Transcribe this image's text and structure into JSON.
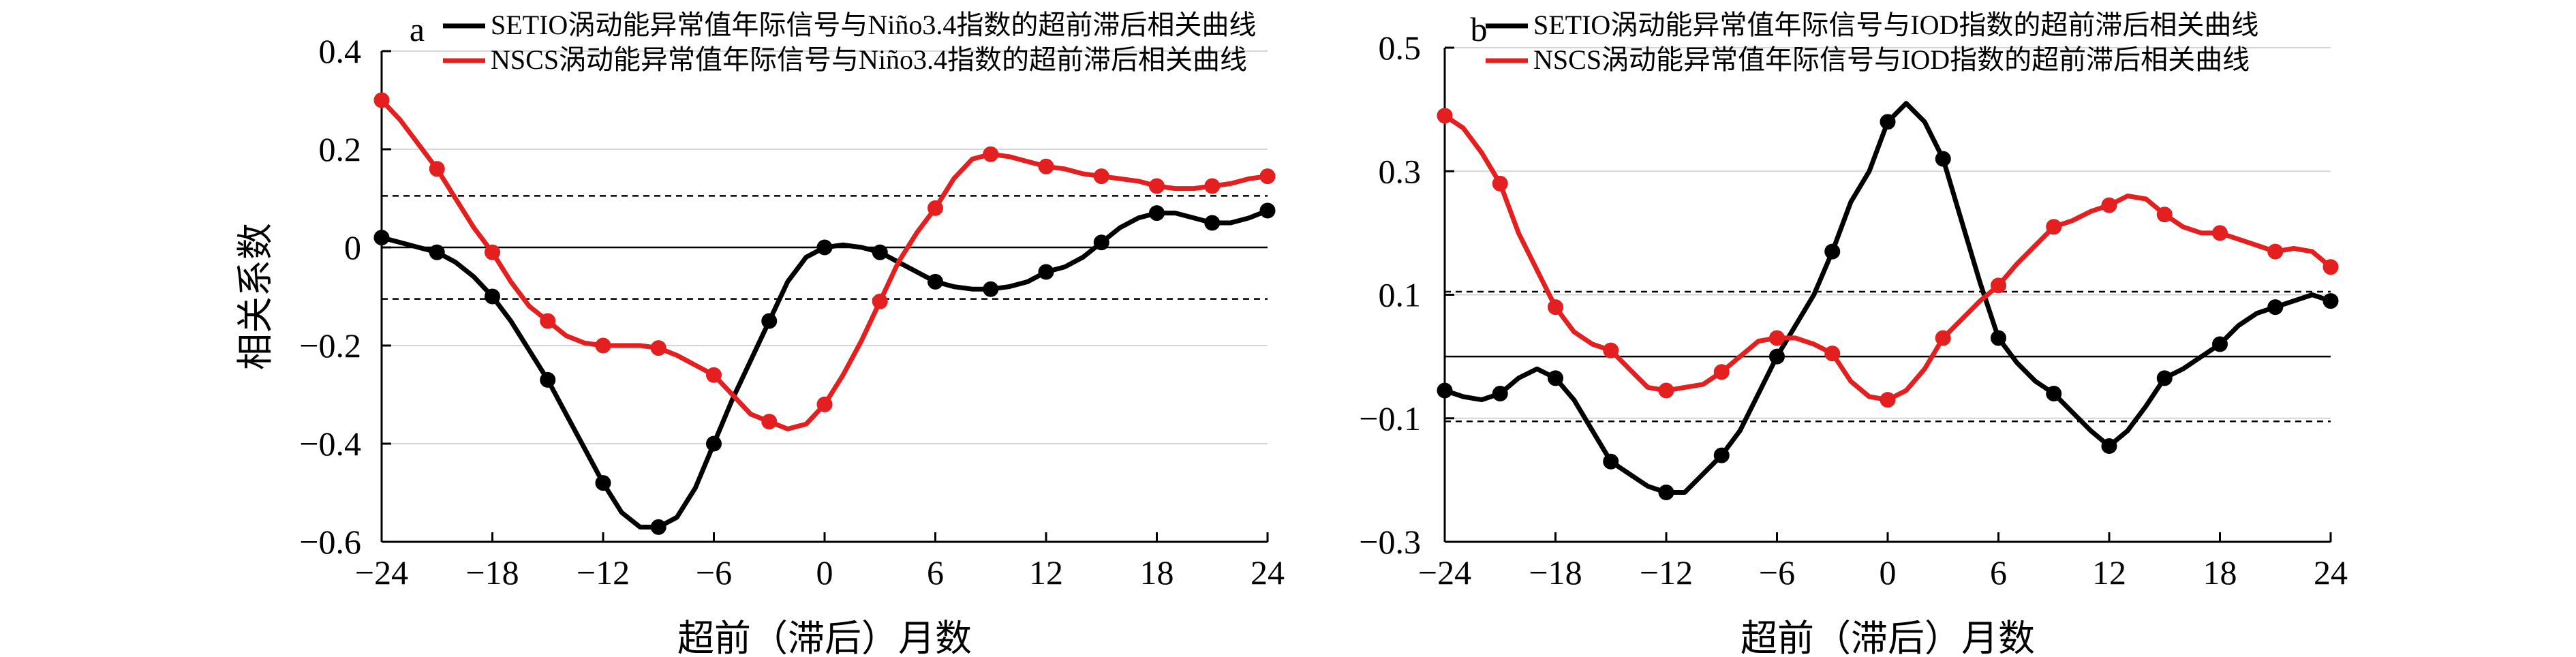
{
  "chart_data": [
    {
      "panel": "a",
      "type": "line",
      "xlabel": "超前（滞后）月数",
      "ylabel": "相关系数",
      "xlim": [
        -24,
        24
      ],
      "ylim": [
        -0.6,
        0.4
      ],
      "xticks": [
        -24,
        -18,
        -12,
        -6,
        0,
        6,
        12,
        18,
        24
      ],
      "yticks": [
        0.4,
        0.2,
        0,
        -0.2,
        -0.4,
        -0.6
      ],
      "xtick_labels": [
        "−24",
        "−18",
        "−12",
        "−6",
        "0",
        "6",
        "12",
        "18",
        "24"
      ],
      "ytick_labels": [
        "0.4",
        "0.2",
        "0",
        "−0.2",
        "−0.4",
        "−0.6"
      ],
      "significance": 0.105,
      "grid": false,
      "legend_position": "top-right",
      "series": [
        {
          "name": "SETIO涡动能异常值年际信号与Niño3.4指数的超前滞后相关曲线",
          "color": "#000000",
          "x": [
            -24,
            -23,
            -22,
            -21,
            -20,
            -19,
            -18,
            -17,
            -16,
            -15,
            -14,
            -13,
            -12,
            -11,
            -10,
            -9,
            -8,
            -7,
            -6,
            -5,
            -4,
            -3,
            -2,
            -1,
            0,
            1,
            2,
            3,
            4,
            5,
            6,
            7,
            8,
            9,
            10,
            11,
            12,
            13,
            14,
            15,
            16,
            17,
            18,
            19,
            20,
            21,
            22,
            23,
            24
          ],
          "values": [
            0.02,
            0.01,
            0.0,
            -0.01,
            -0.03,
            -0.06,
            -0.1,
            -0.15,
            -0.21,
            -0.27,
            -0.34,
            -0.41,
            -0.48,
            -0.54,
            -0.57,
            -0.57,
            -0.55,
            -0.49,
            -0.4,
            -0.31,
            -0.23,
            -0.15,
            -0.07,
            -0.02,
            0.0,
            0.005,
            0.0,
            -0.01,
            -0.03,
            -0.05,
            -0.07,
            -0.08,
            -0.085,
            -0.085,
            -0.08,
            -0.07,
            -0.05,
            -0.04,
            -0.02,
            0.01,
            0.04,
            0.06,
            0.07,
            0.07,
            0.06,
            0.05,
            0.05,
            0.06,
            0.075
          ],
          "markers_at": [
            -24,
            -21,
            -18,
            -15,
            -12,
            -9,
            -6,
            -3,
            0,
            3,
            6,
            9,
            12,
            15,
            18,
            21,
            24
          ]
        },
        {
          "name": "NSCS涡动能异常值年际信号与Niño3.4指数的超前滞后相关曲线",
          "color": "#e41f1f",
          "x": [
            -24,
            -23,
            -22,
            -21,
            -20,
            -19,
            -18,
            -17,
            -16,
            -15,
            -14,
            -13,
            -12,
            -11,
            -10,
            -9,
            -8,
            -7,
            -6,
            -5,
            -4,
            -3,
            -2,
            -1,
            0,
            1,
            2,
            3,
            4,
            5,
            6,
            7,
            8,
            9,
            10,
            11,
            12,
            13,
            14,
            15,
            16,
            17,
            18,
            19,
            20,
            21,
            22,
            23,
            24
          ],
          "values": [
            0.3,
            0.26,
            0.21,
            0.16,
            0.1,
            0.04,
            -0.01,
            -0.07,
            -0.12,
            -0.15,
            -0.18,
            -0.195,
            -0.2,
            -0.2,
            -0.2,
            -0.205,
            -0.22,
            -0.24,
            -0.26,
            -0.3,
            -0.34,
            -0.355,
            -0.37,
            -0.36,
            -0.32,
            -0.26,
            -0.19,
            -0.11,
            -0.03,
            0.03,
            0.08,
            0.14,
            0.18,
            0.19,
            0.185,
            0.175,
            0.165,
            0.16,
            0.15,
            0.145,
            0.14,
            0.135,
            0.125,
            0.12,
            0.12,
            0.125,
            0.13,
            0.14,
            0.145
          ],
          "markers_at": [
            -24,
            -21,
            -18,
            -15,
            -12,
            -9,
            -6,
            -3,
            0,
            3,
            6,
            9,
            12,
            15,
            18,
            21,
            24
          ]
        }
      ]
    },
    {
      "panel": "b",
      "type": "line",
      "xlabel": "超前（滞后）月数",
      "ylabel": "",
      "xlim": [
        -24,
        24
      ],
      "ylim": [
        -0.3,
        0.5
      ],
      "xticks": [
        -24,
        -18,
        -12,
        -6,
        0,
        6,
        12,
        18,
        24
      ],
      "yticks": [
        0.5,
        0.3,
        0.1,
        -0.1,
        -0.3
      ],
      "xtick_labels": [
        "−24",
        "−18",
        "−12",
        "−6",
        "0",
        "6",
        "12",
        "18",
        "24"
      ],
      "ytick_labels": [
        "0.5",
        "0.3",
        "0.1",
        "−0.1",
        "−0.3"
      ],
      "significance": 0.105,
      "grid": false,
      "legend_position": "top-right",
      "series": [
        {
          "name": "SETIO涡动能异常值年际信号与IOD指数的超前滞后相关曲线",
          "color": "#000000",
          "x": [
            -24,
            -23,
            -22,
            -21,
            -20,
            -19,
            -18,
            -17,
            -16,
            -15,
            -14,
            -13,
            -12,
            -11,
            -10,
            -9,
            -8,
            -7,
            -6,
            -5,
            -4,
            -3,
            -2,
            -1,
            0,
            1,
            2,
            3,
            4,
            5,
            6,
            7,
            8,
            9,
            10,
            11,
            12,
            13,
            14,
            15,
            16,
            17,
            18,
            19,
            20,
            21,
            22,
            23,
            24
          ],
          "values": [
            -0.055,
            -0.065,
            -0.07,
            -0.06,
            -0.035,
            -0.02,
            -0.035,
            -0.07,
            -0.12,
            -0.17,
            -0.19,
            -0.21,
            -0.22,
            -0.22,
            -0.19,
            -0.16,
            -0.12,
            -0.06,
            0.0,
            0.05,
            0.1,
            0.17,
            0.25,
            0.3,
            0.38,
            0.41,
            0.38,
            0.32,
            0.22,
            0.12,
            0.03,
            -0.01,
            -0.04,
            -0.06,
            -0.09,
            -0.12,
            -0.145,
            -0.12,
            -0.08,
            -0.035,
            -0.02,
            0.0,
            0.02,
            0.05,
            0.07,
            0.08,
            0.09,
            0.1,
            0.09
          ],
          "markers_at": [
            -24,
            -21,
            -18,
            -15,
            -12,
            -9,
            -6,
            -3,
            0,
            3,
            6,
            9,
            12,
            15,
            18,
            21,
            24
          ]
        },
        {
          "name": "NSCS涡动能异常值年际信号与IOD指数的超前滞后相关曲线",
          "color": "#e41f1f",
          "x": [
            -24,
            -23,
            -22,
            -21,
            -20,
            -19,
            -18,
            -17,
            -16,
            -15,
            -14,
            -13,
            -12,
            -11,
            -10,
            -9,
            -8,
            -7,
            -6,
            -5,
            -4,
            -3,
            -2,
            -1,
            0,
            1,
            2,
            3,
            4,
            5,
            6,
            7,
            8,
            9,
            10,
            11,
            12,
            13,
            14,
            15,
            16,
            17,
            18,
            19,
            20,
            21,
            22,
            23,
            24
          ],
          "values": [
            0.39,
            0.37,
            0.33,
            0.28,
            0.2,
            0.14,
            0.08,
            0.04,
            0.02,
            0.01,
            -0.02,
            -0.05,
            -0.055,
            -0.05,
            -0.045,
            -0.025,
            0.0,
            0.025,
            0.03,
            0.03,
            0.02,
            0.005,
            -0.04,
            -0.065,
            -0.07,
            -0.055,
            -0.02,
            0.03,
            0.06,
            0.09,
            0.115,
            0.15,
            0.18,
            0.21,
            0.22,
            0.235,
            0.245,
            0.26,
            0.255,
            0.23,
            0.21,
            0.2,
            0.2,
            0.19,
            0.18,
            0.17,
            0.175,
            0.17,
            0.145
          ],
          "markers_at": [
            -24,
            -21,
            -18,
            -15,
            -12,
            -9,
            -6,
            -3,
            0,
            3,
            6,
            9,
            12,
            15,
            18,
            21,
            24
          ]
        }
      ]
    }
  ]
}
